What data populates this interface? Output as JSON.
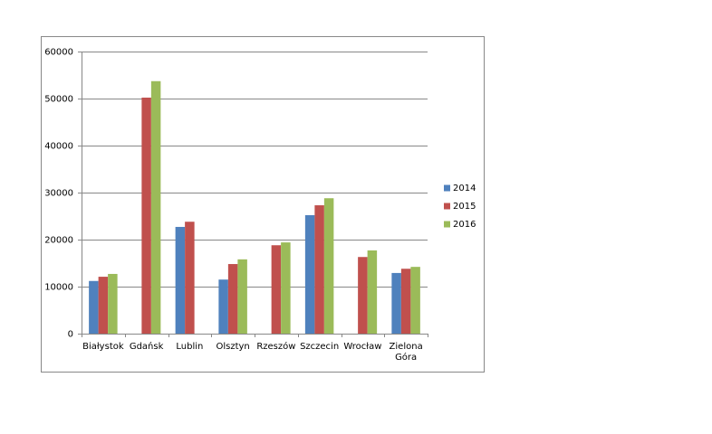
{
  "chart_data": {
    "type": "bar",
    "categories": [
      "Białystok",
      "Gdańsk",
      "Lublin",
      "Olsztyn",
      "Rzeszów",
      "Szczecin",
      "Wrocław",
      "Zielona Góra"
    ],
    "series": [
      {
        "name": "2014",
        "color": "#4f81bd",
        "values": [
          11200,
          null,
          22700,
          11500,
          null,
          25200,
          null,
          12900
        ]
      },
      {
        "name": "2015",
        "color": "#c0504d",
        "values": [
          12100,
          50200,
          23800,
          14800,
          18800,
          27300,
          16300,
          13800
        ]
      },
      {
        "name": "2016",
        "color": "#9bbb59",
        "values": [
          12700,
          53700,
          null,
          15800,
          19400,
          28800,
          17700,
          14200
        ]
      }
    ],
    "ylim": [
      0,
      60000
    ],
    "yticks": [
      0,
      10000,
      20000,
      30000,
      40000,
      50000,
      60000
    ],
    "grid": true,
    "legend": "right"
  }
}
